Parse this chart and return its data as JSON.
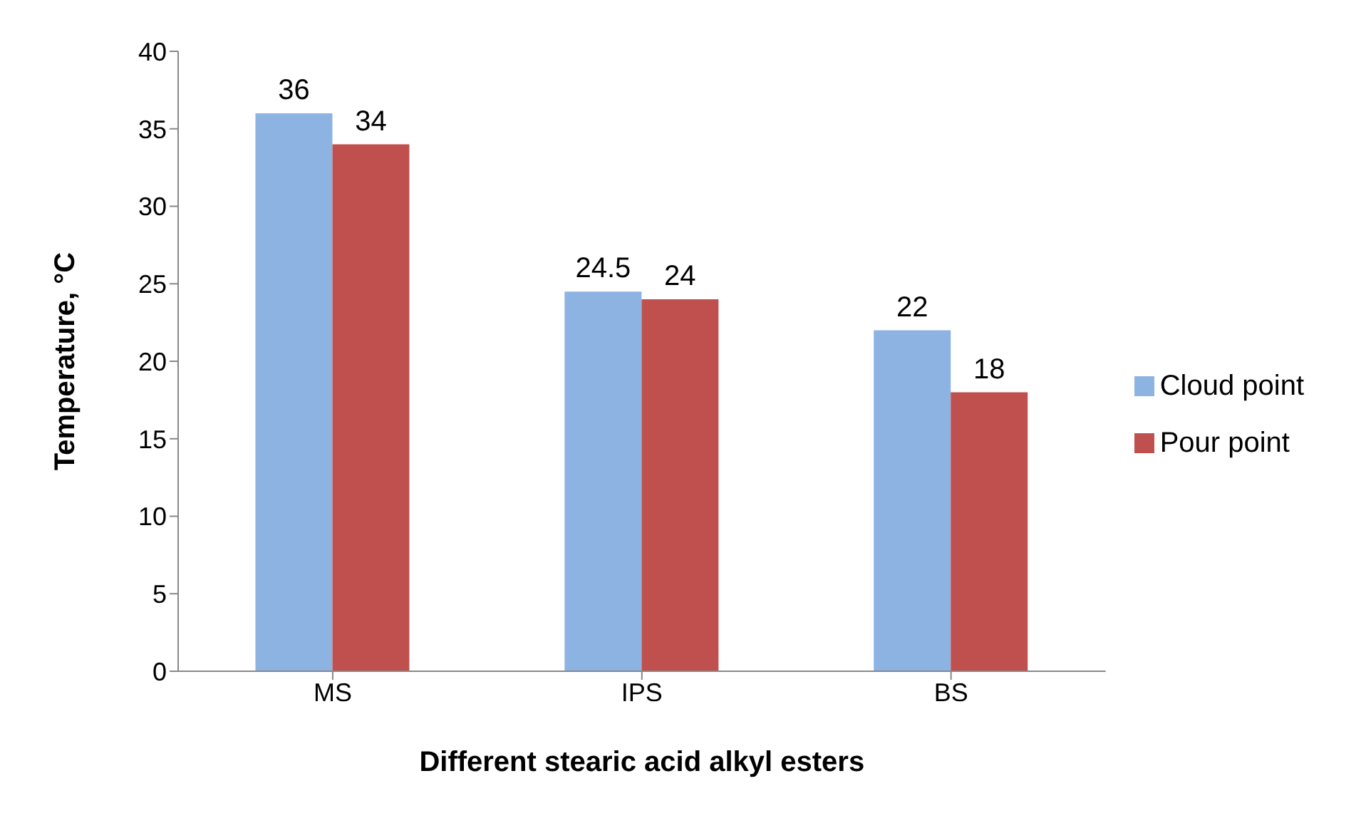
{
  "chart_data": {
    "type": "bar",
    "xlabel": "Different stearic acid alkyl esters",
    "ylabel": "Temperature, °C",
    "categories": [
      "MS",
      "IPS",
      "BS"
    ],
    "series": [
      {
        "name": "Cloud point",
        "color": "#8db3e2",
        "values": [
          36,
          24.5,
          22
        ]
      },
      {
        "name": "Pour point",
        "color": "#c0504d",
        "values": [
          34,
          24,
          18
        ]
      }
    ],
    "ylim": [
      0,
      40
    ],
    "yticks": [
      0,
      5,
      10,
      15,
      20,
      25,
      30,
      35,
      40
    ],
    "data_labels": true,
    "legend": "right",
    "grid": false
  }
}
